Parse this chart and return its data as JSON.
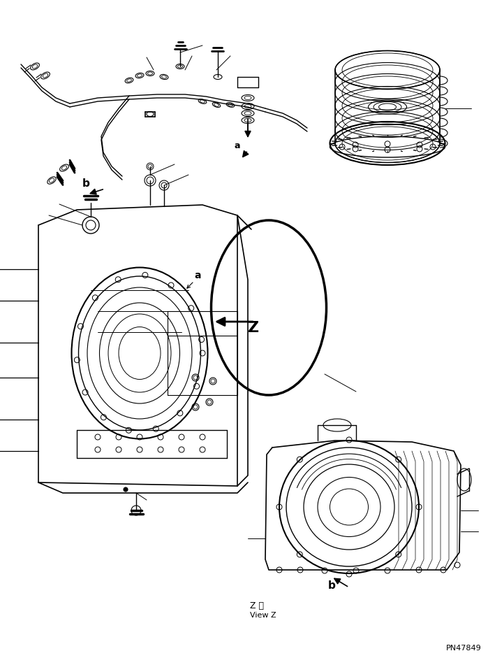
{
  "bg_color": "#ffffff",
  "line_color": "#000000",
  "fig_width": 6.99,
  "fig_height": 9.41,
  "dpi": 100,
  "text_z_view_japanese": "Z 視",
  "text_z_view_english": "View Z",
  "part_number": "PN47849",
  "label_a": "a",
  "label_b": "b",
  "label_z": "Z"
}
